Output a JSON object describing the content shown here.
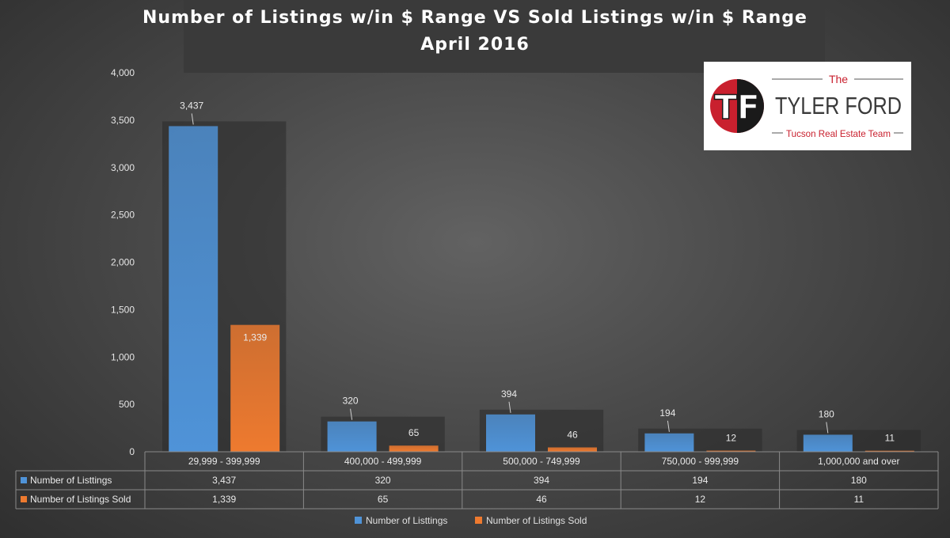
{
  "title_line1": "Number of Listings w/in $ Range VS Sold Listings w/in $ Range",
  "title_line2": "April 2016",
  "logo": {
    "the": "The",
    "name": "TYLER FORD",
    "subtitle": "Tucson Real Estate Team",
    "mark": "TF"
  },
  "colors": {
    "listings": "#4f93d8",
    "sold": "#ee7a2f",
    "logo_red": "#c9202e"
  },
  "chart_data": {
    "type": "bar",
    "categories": [
      "29,999 - 399,999",
      "400,000 - 499,999",
      "500,000 - 749,999",
      "750,000 - 999,999",
      "1,000,000 and over"
    ],
    "series": [
      {
        "name": "Number of Listtings",
        "values": [
          3437,
          320,
          394,
          194,
          180
        ],
        "labels": [
          "3,437",
          "320",
          "394",
          "194",
          "180"
        ]
      },
      {
        "name": "Number of Listings Sold",
        "values": [
          1339,
          65,
          46,
          12,
          11
        ],
        "labels": [
          "1,339",
          "65",
          "46",
          "12",
          "11"
        ]
      }
    ],
    "y_ticks": [
      "0",
      "500",
      "1,000",
      "1,500",
      "2,000",
      "2,500",
      "3,000",
      "3,500",
      "4,000"
    ],
    "ylim": [
      0,
      4000
    ],
    "legend_position": "bottom",
    "data_table": true
  }
}
